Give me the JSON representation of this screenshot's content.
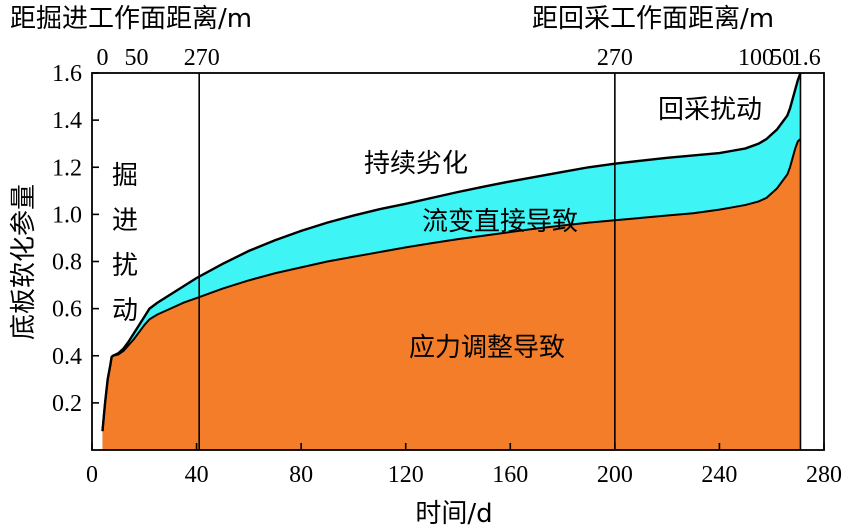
{
  "chart_data": {
    "type": "area",
    "xlabel": "时间/d",
    "ylabel": "底板软化参量",
    "top_left_label": "距掘进工作面距离/m",
    "top_right_label": "距回采工作面距离/m",
    "xlim": [
      0,
      280
    ],
    "ylim": [
      0,
      1.6
    ],
    "x_ticks": [
      "0",
      "40",
      "80",
      "120",
      "160",
      "200",
      "240",
      "280"
    ],
    "y_ticks": [
      "0.2",
      "0.4",
      "0.6",
      "0.8",
      "1.0",
      "1.2",
      "1.4",
      "1.6"
    ],
    "top_ticks": [
      {
        "label": "0",
        "x": 4
      },
      {
        "label": "50",
        "x": 17
      },
      {
        "label": "270",
        "x": 42
      },
      {
        "label": "270",
        "x": 200
      },
      {
        "label": "100",
        "x": 254
      },
      {
        "label": "50",
        "x": 264
      },
      {
        "label": "1.6",
        "x": 273
      }
    ],
    "vertical_lines_x": [
      41,
      200,
      271
    ],
    "colors": {
      "stress_area": "#f47d2a",
      "rheology_area": "#3ef4f4",
      "line": "#000000"
    },
    "series": [
      {
        "name": "应力调整导致",
        "x": [
          4,
          5,
          6,
          7,
          7.5,
          8,
          10,
          12,
          14,
          16,
          18,
          20,
          22,
          25,
          30,
          35,
          40,
          50,
          60,
          70,
          80,
          90,
          100,
          110,
          120,
          130,
          140,
          150,
          160,
          170,
          180,
          190,
          200,
          210,
          220,
          230,
          240,
          245,
          250,
          255,
          258,
          260,
          262,
          264,
          266,
          267,
          268,
          269,
          270,
          271
        ],
        "values": [
          0.08,
          0.2,
          0.3,
          0.36,
          0.395,
          0.4,
          0.405,
          0.42,
          0.445,
          0.47,
          0.5,
          0.53,
          0.555,
          0.575,
          0.6,
          0.625,
          0.645,
          0.685,
          0.72,
          0.75,
          0.775,
          0.8,
          0.82,
          0.84,
          0.86,
          0.878,
          0.895,
          0.91,
          0.925,
          0.94,
          0.953,
          0.965,
          0.975,
          0.985,
          0.995,
          1.005,
          1.02,
          1.03,
          1.04,
          1.055,
          1.07,
          1.09,
          1.11,
          1.14,
          1.17,
          1.2,
          1.24,
          1.28,
          1.31,
          1.32
        ]
      },
      {
        "name": "流变直接导致",
        "x": [
          4,
          5,
          6,
          7,
          7.5,
          8,
          10,
          12,
          14,
          16,
          18,
          20,
          22,
          25,
          30,
          35,
          40,
          50,
          60,
          70,
          80,
          90,
          100,
          110,
          120,
          130,
          140,
          150,
          160,
          170,
          180,
          190,
          200,
          210,
          220,
          230,
          240,
          245,
          250,
          255,
          258,
          260,
          262,
          264,
          266,
          267,
          268,
          269,
          270,
          271
        ],
        "values": [
          0.08,
          0.2,
          0.3,
          0.36,
          0.395,
          0.4,
          0.41,
          0.43,
          0.46,
          0.495,
          0.53,
          0.565,
          0.6,
          0.625,
          0.66,
          0.695,
          0.73,
          0.79,
          0.845,
          0.89,
          0.93,
          0.965,
          0.995,
          1.022,
          1.045,
          1.07,
          1.095,
          1.118,
          1.14,
          1.16,
          1.18,
          1.2,
          1.215,
          1.228,
          1.24,
          1.25,
          1.26,
          1.27,
          1.28,
          1.3,
          1.32,
          1.34,
          1.36,
          1.39,
          1.42,
          1.45,
          1.49,
          1.53,
          1.57,
          1.6
        ]
      }
    ],
    "annotations": [
      {
        "text": "掘进扰动",
        "vertical": true
      },
      {
        "text": "持续劣化"
      },
      {
        "text": "流变直接导致"
      },
      {
        "text": "应力调整导致"
      },
      {
        "text": "回采扰动"
      }
    ]
  }
}
